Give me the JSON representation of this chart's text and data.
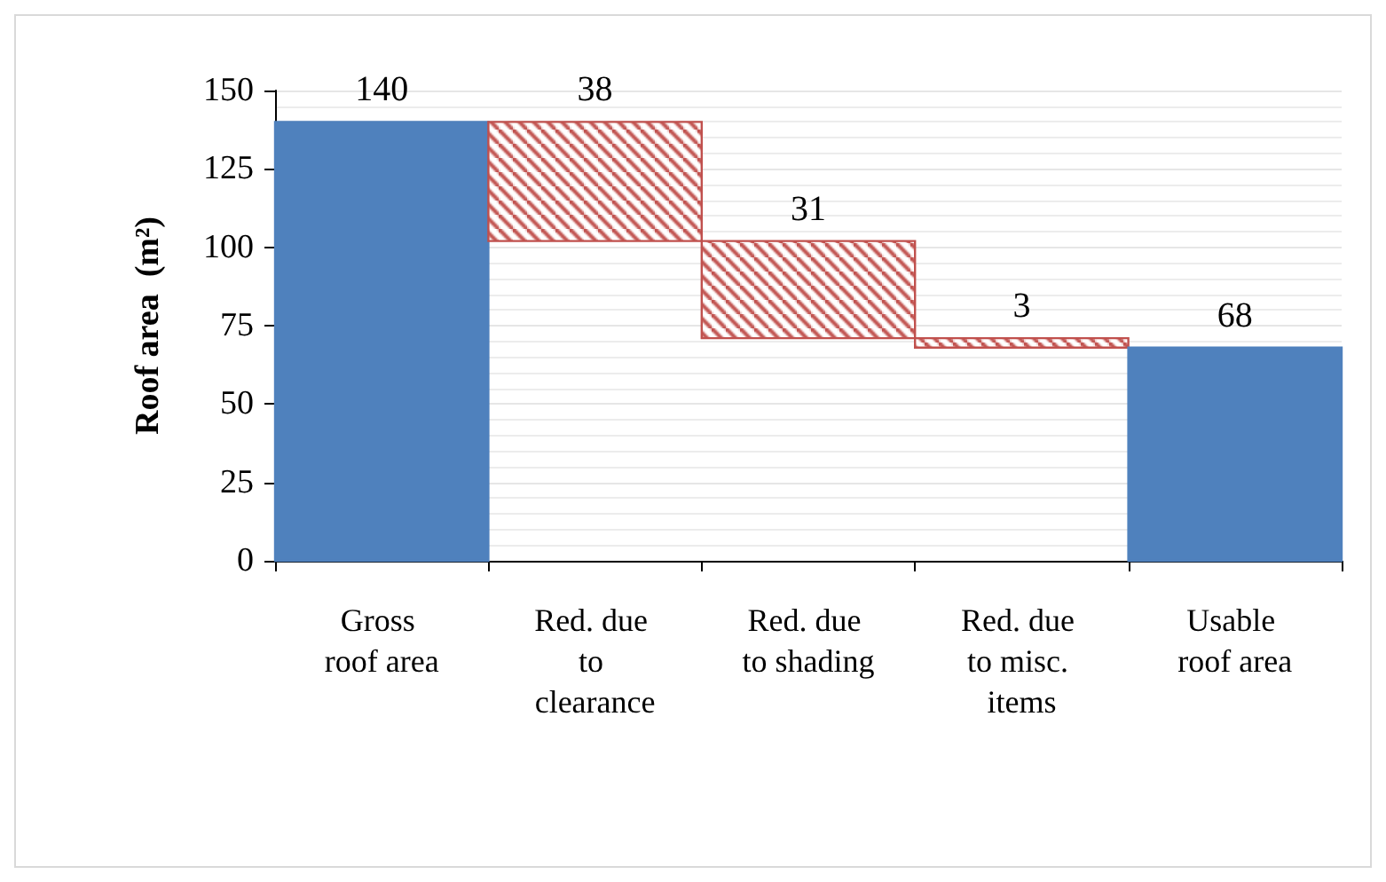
{
  "chart_data": {
    "type": "bar",
    "ylabel": "Roof area  (m²)",
    "categories": [
      "Gross roof area",
      "Red. due to clearance",
      "Red. due to shading",
      "Red. due to misc. items",
      "Usable roof area"
    ],
    "values": [
      140,
      38,
      31,
      3,
      68
    ],
    "base": [
      0,
      102,
      71,
      68,
      0
    ],
    "colors": [
      "#4f81bd",
      "#c0504d",
      "#c0504d",
      "#c0504d",
      "#4f81bd"
    ],
    "ylim": [
      0,
      150
    ],
    "yticks": [
      0,
      25,
      50,
      75,
      100,
      125,
      150
    ],
    "grid": true,
    "data_labels": true
  }
}
